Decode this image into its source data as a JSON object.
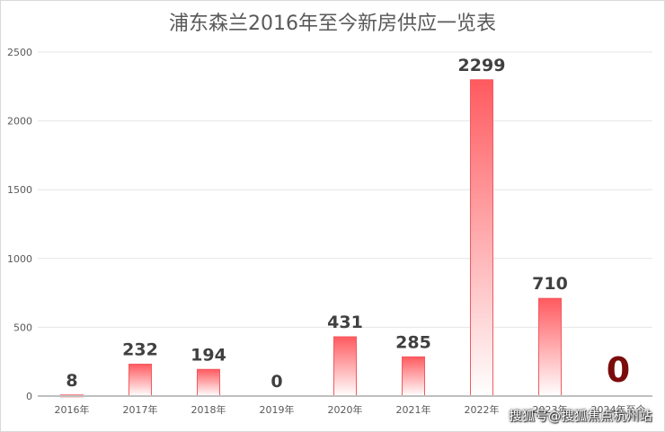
{
  "chart_data": {
    "type": "bar",
    "title": "浦东森兰2016年至今新房供应一览表",
    "categories": [
      "2016年",
      "2017年",
      "2018年",
      "2019年",
      "2020年",
      "2021年",
      "2022年",
      "2023年",
      "2024年至今"
    ],
    "values": [
      8,
      232,
      194,
      0,
      431,
      285,
      2299,
      710,
      0
    ],
    "data_labels": [
      "8",
      "232",
      "194",
      "0",
      "431",
      "285",
      "2299",
      "710",
      "0"
    ],
    "y_ticks": [
      0,
      500,
      1000,
      1500,
      2000,
      2500
    ],
    "ylim": [
      0,
      2500
    ],
    "grid": true,
    "legend": "none",
    "bar_color_top": "#ff5a5f",
    "bar_color_bottom": "#ffffff",
    "bar_stroke": "#f25a5f",
    "label_color": "#404040",
    "highlight_label_index": 8,
    "highlight_label_color": "#7b0c0c"
  },
  "watermark": "搜狐号@搜狐焦点杭州站"
}
